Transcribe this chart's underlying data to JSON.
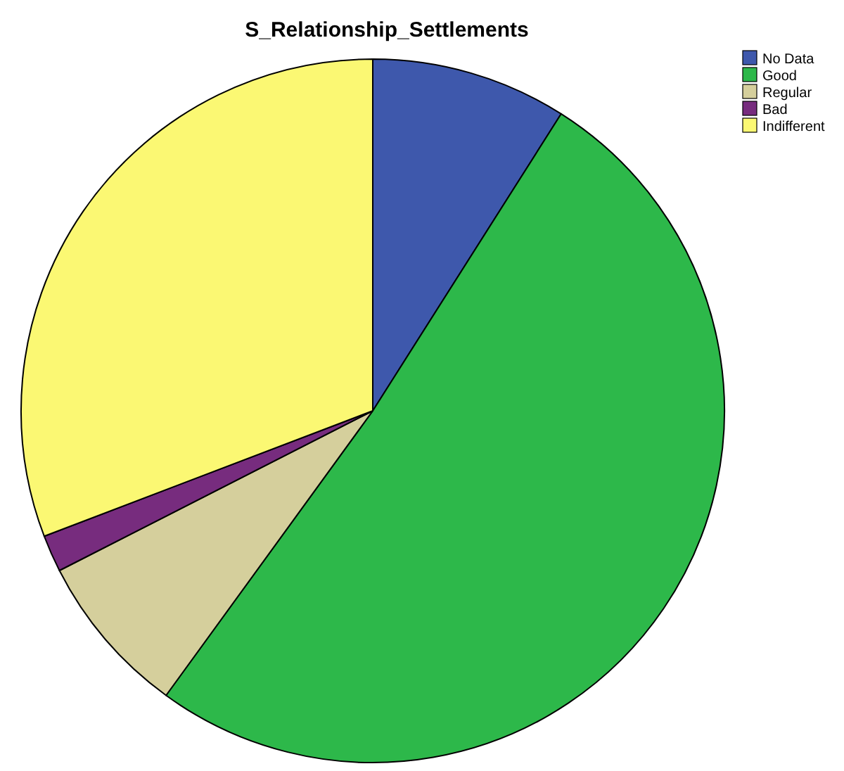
{
  "chart_data": {
    "type": "pie",
    "title": "S_Relationship_Settlements",
    "categories": [
      "No Data",
      "Good",
      "Regular",
      "Bad",
      "Indifferent"
    ],
    "values": [
      9,
      51,
      7.5,
      1.7,
      30.8
    ],
    "colors": [
      "#3e58ac",
      "#2db84a",
      "#d5cf9c",
      "#772c7e",
      "#fbf873"
    ],
    "legend": "top right"
  }
}
